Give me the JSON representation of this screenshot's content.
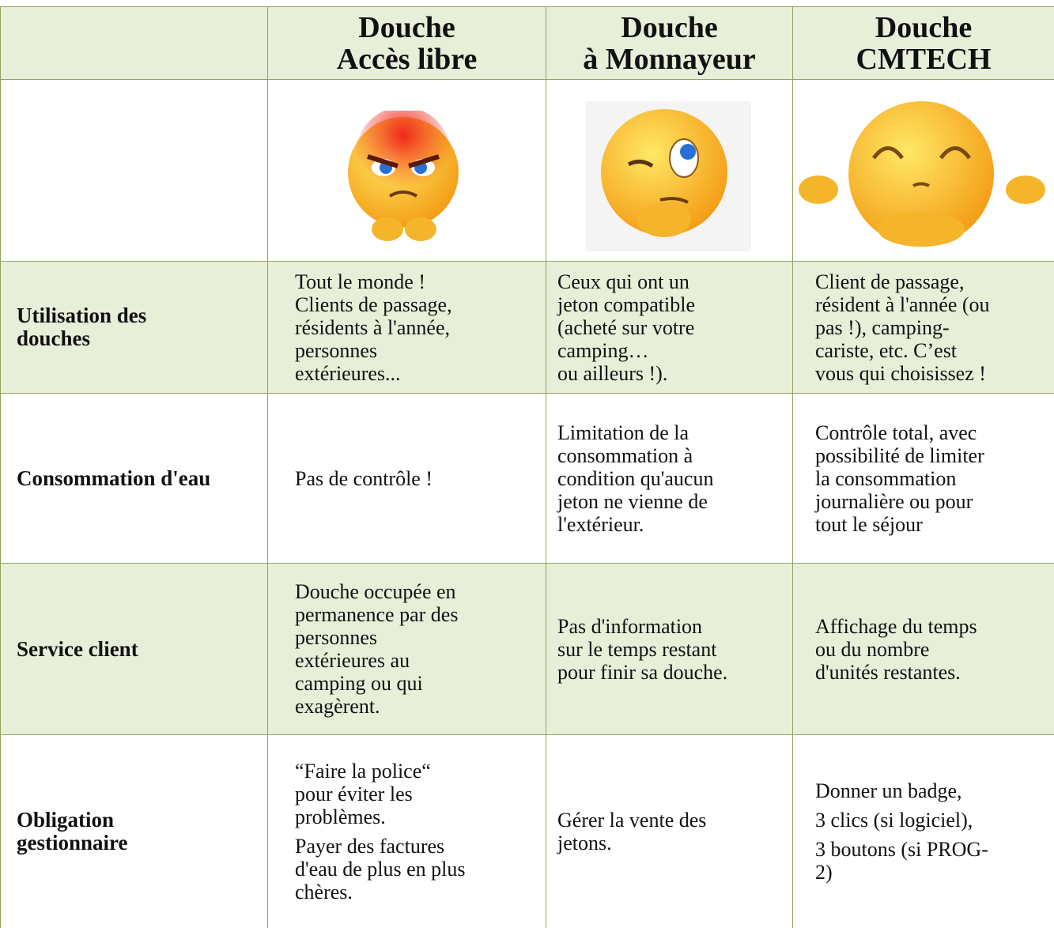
{
  "header": {
    "columns": [
      "Douche\nAccès libre",
      "Douche\nà Monnayeur",
      "Douche\nCMTECH"
    ]
  },
  "rows": [
    {
      "label": "Utilisation des\ndouches",
      "cells": [
        [
          "Tout le monde !\nClients de passage,\nrésidents à l'année,\npersonnes\nextérieures..."
        ],
        [
          "Ceux qui ont un\njeton compatible\n(acheté  sur votre\ncamping…\nou ailleurs !)."
        ],
        [
          "Client de passage,\nrésident à l'année (ou\npas !), camping-\ncariste, etc. C’est\nvous qui choisissez !"
        ]
      ]
    },
    {
      "label": "Consommation d'eau",
      "cells": [
        [
          "Pas de contrôle !"
        ],
        [
          "Limitation de la\nconsommation à\ncondition qu'aucun\njeton  ne vienne de\nl'extérieur."
        ],
        [
          "Contrôle total, avec\npossibilité de limiter\nla consommation\njournalière ou pour\ntout le séjour"
        ]
      ]
    },
    {
      "label": "Service client",
      "cells": [
        [
          "Douche occupée en\npermanence par des\npersonnes\nextérieures au\ncamping ou qui\nexagèrent."
        ],
        [
          "Pas d'information\nsur le temps  restant\npour  finir sa douche."
        ],
        [
          "Affichage du  temps\nou  du nombre\nd'unités restantes."
        ]
      ]
    },
    {
      "label": "Obligation\ngestionnaire",
      "cells": [
        [
          "“Faire la police“\npour éviter les\nproblèmes.",
          "Payer des  factures\nd'eau de plus en plus\nchères."
        ],
        [
          "Gérer la vente des\njetons."
        ],
        [
          "Donner un badge,",
          "3 clics (si logiciel),",
          "3 boutons (si PROG-\n2)"
        ]
      ]
    }
  ]
}
